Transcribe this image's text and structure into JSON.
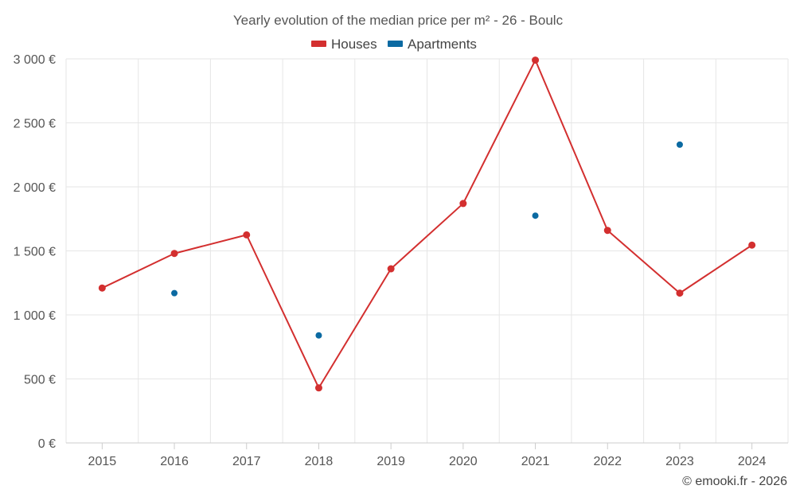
{
  "chart_data": {
    "type": "line",
    "title": "Yearly evolution of the median price per m² - 26 - Boulc",
    "categories": [
      "2015",
      "2016",
      "2017",
      "2018",
      "2019",
      "2020",
      "2021",
      "2022",
      "2023",
      "2024"
    ],
    "ylim": [
      0,
      3000
    ],
    "yticks": [
      0,
      500,
      1000,
      1500,
      2000,
      2500,
      3000
    ],
    "ytick_labels": [
      "0 €",
      "500 €",
      "1 000 €",
      "1 500 €",
      "2 000 €",
      "2 500 €",
      "3 000 €"
    ],
    "grid": true,
    "legend_position": "top-center",
    "series": [
      {
        "name": "Houses",
        "color": "#d32f2f",
        "style": "line-with-markers",
        "values": [
          1210,
          1480,
          1625,
          430,
          1360,
          1870,
          2990,
          1660,
          1170,
          1545
        ]
      },
      {
        "name": "Apartments",
        "color": "#0b6aa2",
        "style": "markers-only",
        "values": [
          null,
          1170,
          null,
          840,
          null,
          null,
          1775,
          null,
          2330,
          null
        ]
      }
    ],
    "credit": "© emooki.fr - 2026"
  }
}
